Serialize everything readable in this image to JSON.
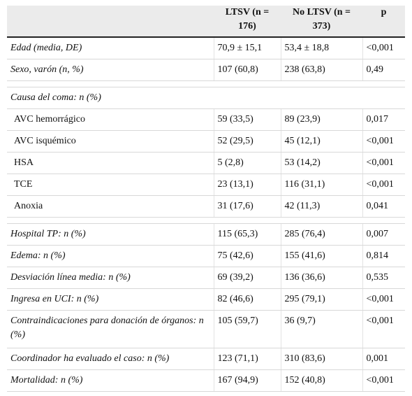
{
  "header": {
    "col1": "",
    "col2": "LTSV (n = 176)",
    "col3": "No LTSV (n = 373)",
    "col4": "p"
  },
  "rows": [
    {
      "label": "Edad (media, DE)",
      "ltsv": "70,9 ± 15,1",
      "no_ltsv": "53,4 ± 18,8",
      "p": "<0,001"
    },
    {
      "label": "Sexo, varón (n, %)",
      "ltsv": "107 (60,8)",
      "no_ltsv": "238 (63,8)",
      "p": "0,49"
    },
    {
      "section": "Causa del coma: n (%)"
    },
    {
      "label": "AVC hemorrágico",
      "ltsv": "59 (33,5)",
      "no_ltsv": "89 (23,9)",
      "p": "0,017"
    },
    {
      "label": "AVC isquémico",
      "ltsv": "52 (29,5)",
      "no_ltsv": "45 (12,1)",
      "p": "<0,001"
    },
    {
      "label": "HSA",
      "ltsv": "5 (2,8)",
      "no_ltsv": "53 (14,2)",
      "p": "<0,001"
    },
    {
      "label": "TCE",
      "ltsv": "23 (13,1)",
      "no_ltsv": "116 (31,1)",
      "p": "<0,001"
    },
    {
      "label": "Anoxia",
      "ltsv": "31 (17,6)",
      "no_ltsv": "42 (11,3)",
      "p": "0,041"
    },
    {
      "label": "Hospital TP: n (%)",
      "ltsv": "115 (65,3)",
      "no_ltsv": "285 (76,4)",
      "p": "0,007"
    },
    {
      "label": "Edema: n (%)",
      "ltsv": "75 (42,6)",
      "no_ltsv": "155 (41,6)",
      "p": "0,814"
    },
    {
      "label": "Desviación línea media: n (%)",
      "ltsv": "69 (39,2)",
      "no_ltsv": "136 (36,6)",
      "p": "0,535"
    },
    {
      "label": "Ingresa en UCI: n (%)",
      "ltsv": "82 (46,6)",
      "no_ltsv": "295 (79,1)",
      "p": "<0,001"
    },
    {
      "label": "Contraindicaciones para donación de órganos: n (%)",
      "ltsv": "105 (59,7)",
      "no_ltsv": "36 (9,7)",
      "p": "<0,001"
    },
    {
      "label": "Coordinador ha evaluado el caso: n (%)",
      "ltsv": "123 (71,1)",
      "no_ltsv": "310 (83,6)",
      "p": "0,001"
    },
    {
      "label": "Mortalidad: n (%)",
      "ltsv": "167 (94,9)",
      "no_ltsv": "152 (40,8)",
      "p": "<0,001"
    }
  ]
}
